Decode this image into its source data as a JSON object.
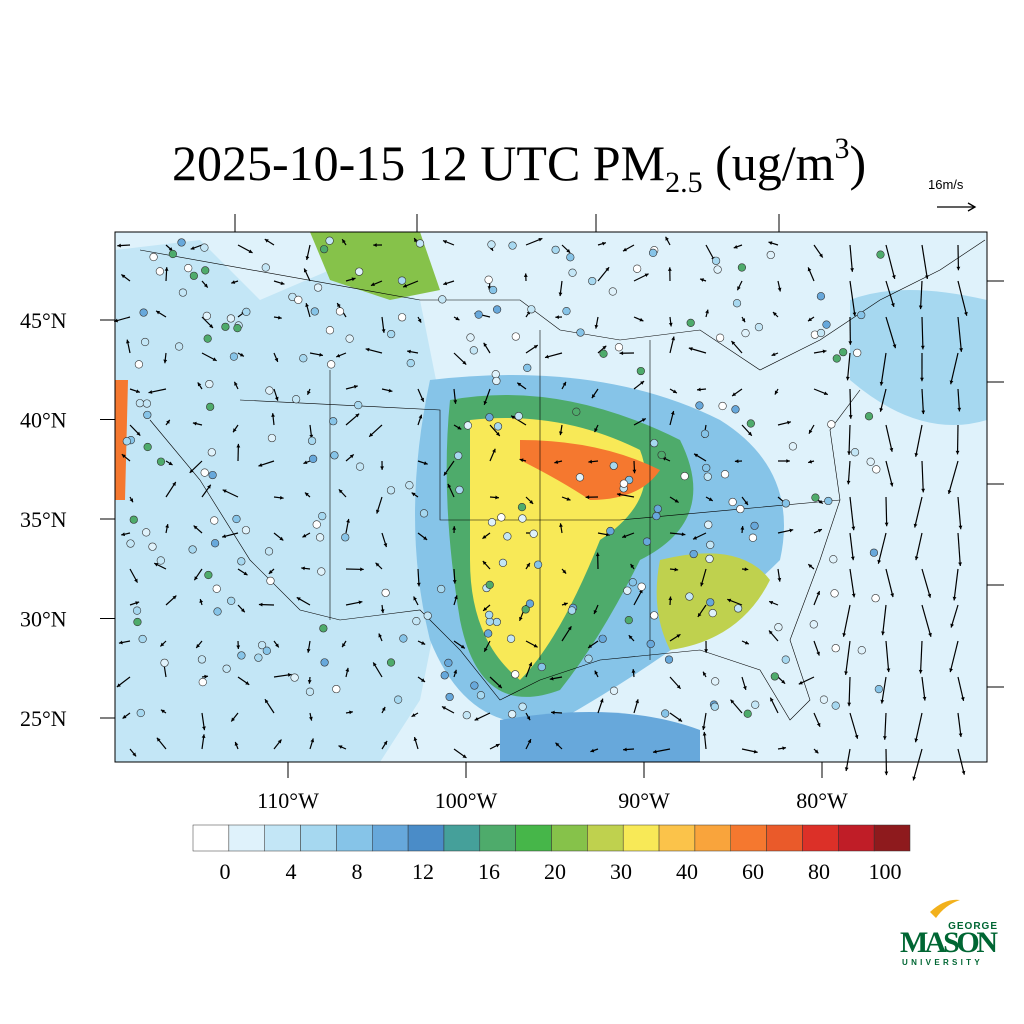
{
  "title": {
    "main": "2025-10-15 12 UTC PM",
    "sub": "2.5",
    "unit": " (ug/m",
    "sup": "3",
    "end": ")"
  },
  "vector_reference": "16m/s",
  "lat_ticks": [
    {
      "value": 45,
      "label": "45°N"
    },
    {
      "value": 40,
      "label": "40°N"
    },
    {
      "value": 35,
      "label": "35°N"
    },
    {
      "value": 30,
      "label": "30°N"
    },
    {
      "value": 25,
      "label": "25°N"
    }
  ],
  "lon_ticks": [
    {
      "value": -110,
      "label": "110°W"
    },
    {
      "value": -100,
      "label": "100°W"
    },
    {
      "value": -90,
      "label": "90°W"
    },
    {
      "value": -80,
      "label": "80°W"
    }
  ],
  "colorbar": {
    "colors": [
      "#ffffff",
      "#dff2fb",
      "#c3e6f6",
      "#a6d8f0",
      "#86c4e8",
      "#67a8db",
      "#4a8cc8",
      "#45a09a",
      "#4eab6b",
      "#46b649",
      "#86c24a",
      "#bfd14e",
      "#f8e957",
      "#fbc34a",
      "#f9a43c",
      "#f5782f",
      "#ea5a2a",
      "#dc3028",
      "#c01d27",
      "#8e1a1d"
    ],
    "labels": [
      0,
      4,
      8,
      12,
      16,
      20,
      30,
      40,
      60,
      80,
      100
    ]
  },
  "logo": {
    "top": "GEORGE",
    "name": "MASON",
    "bottom": "UNIVERSITY"
  }
}
